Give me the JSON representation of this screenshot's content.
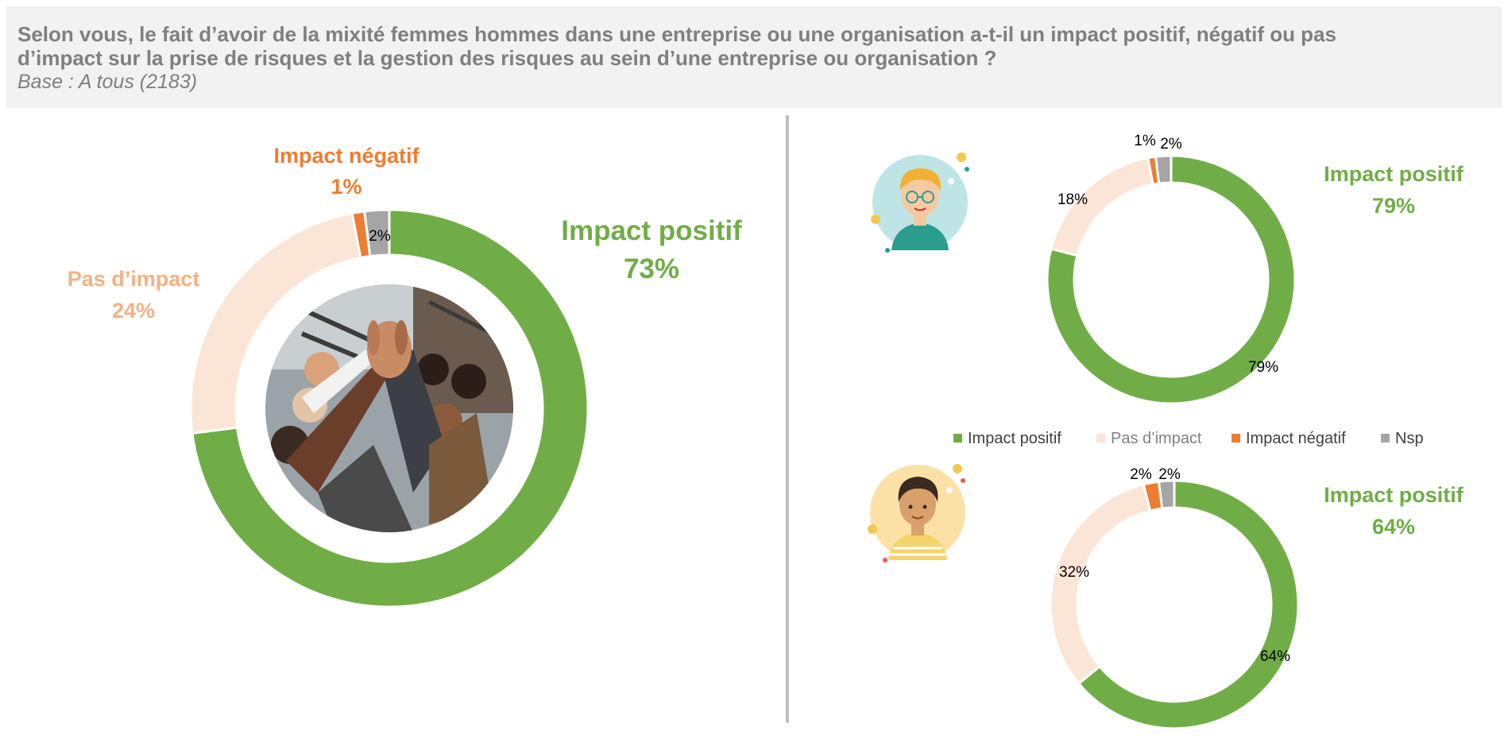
{
  "header": {
    "question_line1": "Selon vous, le fait d’avoir de la mixité femmes hommes dans une entreprise ou une organisation a-t-il un impact positif, négatif ou pas",
    "question_line2": "d’impact sur la prise de risques et la gestion des risques au sein d’une entreprise ou organisation ?",
    "base": "Base : A tous (2183)"
  },
  "colors": {
    "positive": "#70ad47",
    "no_impact": "#fbe5d6",
    "negative": "#ed7d31",
    "nsp": "#a5a5a5",
    "no_impact_text": "#f4b183",
    "header_text": "#7f7f7f"
  },
  "chart_data": [
    {
      "type": "pie",
      "variant": "donut",
      "categories": [
        "Impact positif",
        "Pas d’impact",
        "Impact négatif",
        "Nsp"
      ],
      "values": [
        73,
        24,
        1,
        2
      ],
      "labels": {
        "positive_name": "Impact positif",
        "positive_value": "73%",
        "no_impact_name": "Pas d’impact",
        "no_impact_value": "24%",
        "negative_name": "Impact négatif",
        "negative_value": "1%",
        "nsp_value": "2%"
      },
      "center_image": "team-high-five-photo"
    },
    {
      "type": "pie",
      "variant": "donut",
      "categories": [
        "Impact positif",
        "Pas d’impact",
        "Impact négatif",
        "Nsp"
      ],
      "values": [
        79,
        18,
        1,
        2
      ],
      "labels": {
        "positive_name": "Impact positif",
        "positive_value": "79%",
        "slice_positive": "79%",
        "slice_no_impact": "18%",
        "slice_negative": "1%",
        "slice_nsp": "2%"
      },
      "icon": "woman-avatar-icon"
    },
    {
      "type": "pie",
      "variant": "donut",
      "categories": [
        "Impact positif",
        "Pas d’impact",
        "Impact négatif",
        "Nsp"
      ],
      "values": [
        64,
        32,
        2,
        2
      ],
      "labels": {
        "positive_name": "Impact positif",
        "positive_value": "64%",
        "slice_positive": "64%",
        "slice_no_impact": "32%",
        "slice_negative": "2%",
        "slice_nsp": "2%"
      },
      "icon": "man-avatar-icon"
    }
  ],
  "legend": {
    "placement": "between right charts",
    "items": [
      "Impact positif",
      "Pas d’impact",
      "Impact négatif",
      "Nsp"
    ]
  }
}
